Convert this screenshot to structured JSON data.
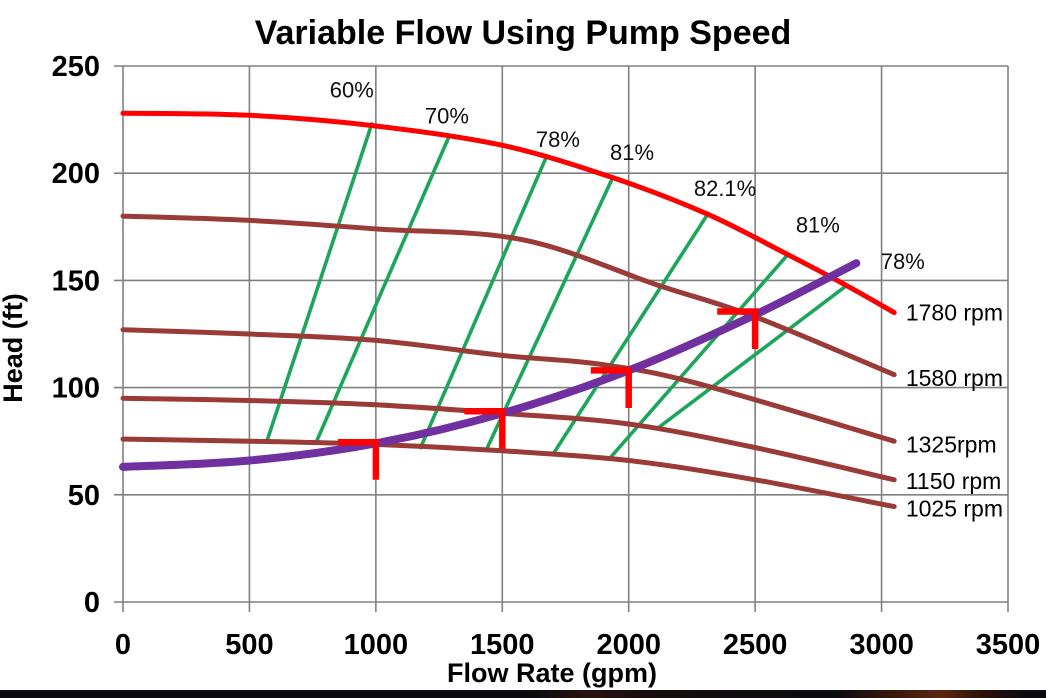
{
  "chart_data": {
    "type": "line",
    "title": "Variable Flow Using Pump Speed",
    "xlabel": "Flow Rate (gpm)",
    "ylabel": "Head (ft)",
    "xlim": [
      0,
      3500
    ],
    "ylim": [
      0,
      250
    ],
    "xticks": [
      0,
      500,
      1000,
      1500,
      2000,
      2500,
      3000,
      3500
    ],
    "yticks": [
      0,
      50,
      100,
      150,
      200,
      250
    ],
    "grid": true,
    "legend_position": "labels-at-curve-ends",
    "colors": {
      "full_speed_curve": "#FF0000",
      "reduced_speed_curve": "#9A3B38",
      "efficiency_line": "#1CA65A",
      "system_curve": "#7030A0",
      "operating_marker": "#FF0000",
      "gridline": "#808080",
      "text": "#000000"
    },
    "pump_curves": [
      {
        "label": "1780 rpm",
        "rpm": 1780,
        "color_key": "full_speed_curve",
        "points": [
          [
            0,
            228
          ],
          [
            500,
            227
          ],
          [
            1000,
            222
          ],
          [
            1500,
            213
          ],
          [
            1935,
            198
          ],
          [
            2310,
            181
          ],
          [
            2630,
            162
          ],
          [
            2855,
            148
          ],
          [
            3050,
            135
          ]
        ]
      },
      {
        "label": "1580 rpm",
        "rpm": 1580,
        "color_key": "reduced_speed_curve",
        "points": [
          [
            0,
            180
          ],
          [
            500,
            178
          ],
          [
            1000,
            174
          ],
          [
            1580,
            169
          ],
          [
            2110,
            148
          ],
          [
            2500,
            133
          ],
          [
            3050,
            106
          ]
        ]
      },
      {
        "label": "1325rpm",
        "rpm": 1325,
        "color_key": "reduced_speed_curve",
        "points": [
          [
            0,
            127
          ],
          [
            500,
            125
          ],
          [
            1000,
            122
          ],
          [
            1500,
            115
          ],
          [
            1880,
            111
          ],
          [
            2270,
            102
          ],
          [
            3050,
            75
          ]
        ]
      },
      {
        "label": "1150 rpm",
        "rpm": 1150,
        "color_key": "reduced_speed_curve",
        "points": [
          [
            0,
            95
          ],
          [
            500,
            94
          ],
          [
            1000,
            92
          ],
          [
            1500,
            88
          ],
          [
            2000,
            83
          ],
          [
            2500,
            72
          ],
          [
            3050,
            57
          ]
        ]
      },
      {
        "label": "1025 rpm",
        "rpm": 1025,
        "color_key": "reduced_speed_curve",
        "points": [
          [
            0,
            76
          ],
          [
            500,
            75
          ],
          [
            1000,
            73.5
          ],
          [
            1500,
            70.5
          ],
          [
            2000,
            66
          ],
          [
            2500,
            57
          ],
          [
            3050,
            44.5
          ]
        ]
      }
    ],
    "curve_label_x": 3096,
    "curve_label_heads": [
      135,
      104.5,
      73.5,
      56.5,
      43.5
    ],
    "system_curve": {
      "points": [
        [
          0,
          63
        ],
        [
          500,
          66
        ],
        [
          1000,
          74
        ],
        [
          1500,
          88
        ],
        [
          2000,
          108
        ],
        [
          2500,
          134
        ],
        [
          2900,
          158
        ]
      ]
    },
    "efficiency_lines": [
      {
        "label": "60%",
        "from": [
          569,
          75
        ],
        "to": [
          984,
          223
        ],
        "label_at": [
          905,
          239
        ]
      },
      {
        "label": "70%",
        "from": [
          764,
          74.5
        ],
        "to": [
          1289,
          217
        ],
        "label_at": [
          1281,
          227
        ]
      },
      {
        "label": "78%",
        "from": [
          1177,
          72
        ],
        "to": [
          1672,
          207
        ],
        "label_at": [
          1720,
          216
        ]
      },
      {
        "label": "81%",
        "from": [
          1437,
          71
        ],
        "to": [
          1937,
          198
        ],
        "label_at": [
          2013,
          210
        ]
      },
      {
        "label": "82.1%",
        "from": [
          1701,
          69
        ],
        "to": [
          2313,
          181
        ],
        "label_at": [
          2381,
          193
        ]
      },
      {
        "label": "81%",
        "from": [
          1925,
          67
        ],
        "to": [
          2629,
          162
        ],
        "label_at": [
          2748,
          176
        ]
      },
      {
        "label": "78%",
        "from": [
          2114,
          81
        ],
        "to": [
          2855,
          147
        ],
        "label_at": [
          3084,
          159
        ]
      }
    ],
    "operating_markers": [
      {
        "flow": 1000,
        "head": 74.5
      },
      {
        "flow": 1500,
        "head": 89
      },
      {
        "flow": 2000,
        "head": 108
      },
      {
        "flow": 2500,
        "head": 135.5
      }
    ],
    "marker_arm_gpm": 150,
    "marker_drop_ft": 17.5
  }
}
